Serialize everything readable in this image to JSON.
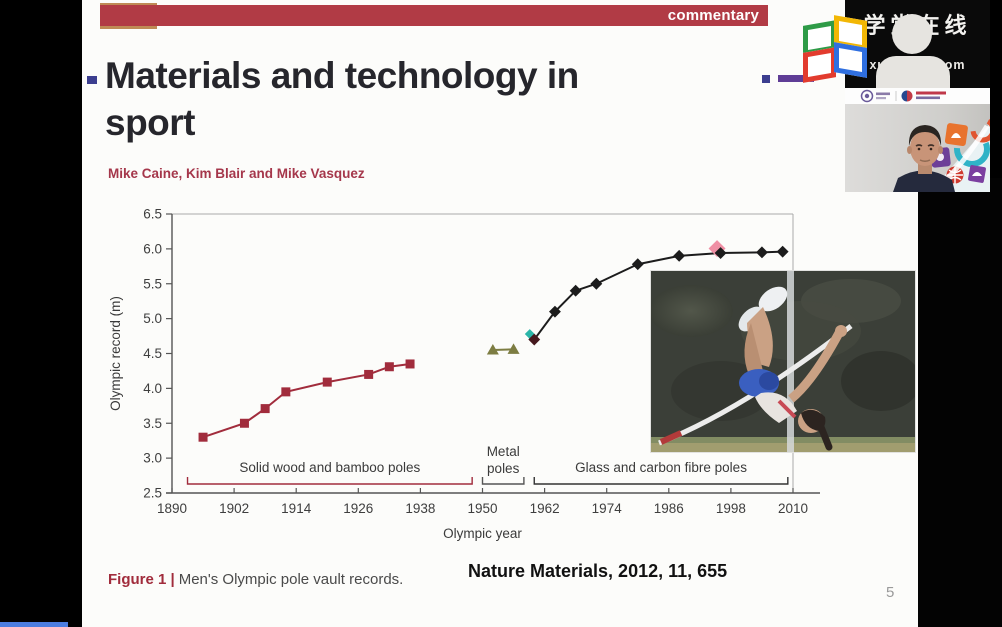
{
  "slide": {
    "kicker": "commentary",
    "title": "Materials and technology in sport",
    "authors": "Mike Caine, Kim Blair and Mike Vasquez",
    "caption_label": "Figure 1 |",
    "caption_text": "Men's Olympic pole vault records.",
    "reference": "Nature Materials, 2012, 11, 655",
    "page_number": "5"
  },
  "webcam": {
    "brand_cn": "学堂在线",
    "brand_url": "xuetangx.com",
    "icons": [
      "avatar-silhouette",
      "xuetangx-open-book-logo",
      "tsinghua-logo",
      "partner-logo",
      "colorful-mascot-graphic",
      "webcam-person"
    ]
  },
  "chart_data": {
    "type": "line",
    "title": "",
    "xlabel": "Olympic year",
    "ylabel": "Olympic record (m)",
    "xlim": [
      1890,
      2010
    ],
    "ylim": [
      2.5,
      6.5
    ],
    "x_ticks": [
      1890,
      1902,
      1914,
      1926,
      1938,
      1950,
      1962,
      1974,
      1986,
      1998,
      2010
    ],
    "y_ticks": [
      2.5,
      3.0,
      3.5,
      4.0,
      4.5,
      5.0,
      5.5,
      6.0,
      6.5
    ],
    "grid": false,
    "legend": "none",
    "series": [
      {
        "name": "Solid wood and bamboo poles",
        "marker": "square",
        "color": "#a12c3c",
        "points": [
          [
            1896,
            3.3
          ],
          [
            1904,
            3.5
          ],
          [
            1908,
            3.71
          ],
          [
            1912,
            3.95
          ],
          [
            1920,
            4.09
          ],
          [
            1928,
            4.2
          ],
          [
            1932,
            4.31
          ],
          [
            1936,
            4.35
          ]
        ]
      },
      {
        "name": "Metal poles",
        "marker": "triangle",
        "color": "#7d7d42",
        "points": [
          [
            1952,
            4.55
          ],
          [
            1956,
            4.56
          ]
        ]
      },
      {
        "name": "Glass and carbon fibre poles",
        "marker": "diamond",
        "color": "#1c1c1c",
        "points": [
          [
            1960,
            4.7
          ],
          [
            1964,
            5.1
          ],
          [
            1968,
            5.4
          ],
          [
            1972,
            5.5
          ],
          [
            1980,
            5.78
          ],
          [
            1988,
            5.9
          ],
          [
            1996,
            5.94
          ],
          [
            2004,
            5.95
          ],
          [
            2008,
            5.96
          ]
        ],
        "highlight": {
          "year": 1996,
          "value": 5.94,
          "color": "#ef8fa4"
        },
        "start_accent": {
          "year": 1960,
          "value": 4.7,
          "color": "#2bb5a8"
        }
      }
    ],
    "annotations": [
      {
        "label": "Solid wood and bamboo poles",
        "from": 1893,
        "to": 1948,
        "color": "#a12c3c",
        "two_line": false
      },
      {
        "label": "Metal poles",
        "from": 1950,
        "to": 1958,
        "color": "#555555",
        "two_line": true
      },
      {
        "label": "Glass and carbon fibre poles",
        "from": 1960,
        "to": 2009,
        "color": "#333333",
        "two_line": false
      }
    ]
  },
  "colors": {
    "kicker_bar": "#b13b45",
    "kicker_square": "#bf8a55",
    "title_text": "#26262c",
    "title_bullet": "#3c3e8f",
    "purple_accent": "#5f3d96",
    "authors_text": "#a5374b",
    "caption_label": "#a12c3c",
    "progress_blue": "#4b7de0",
    "slide_bg": "#fcfcfa",
    "frame_black": "#000000",
    "axis_text": "#444444"
  }
}
